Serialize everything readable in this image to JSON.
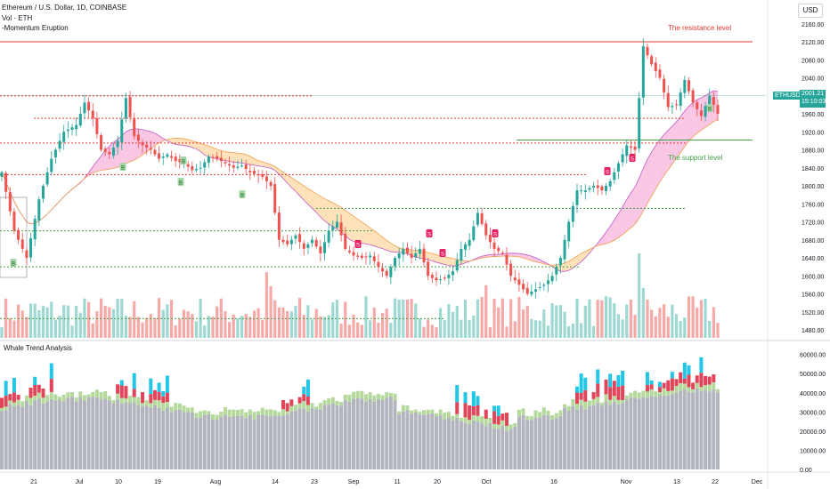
{
  "header": {
    "title": "Ethereum / U.S. Dollar, 1D, COINBASE",
    "volume": "Vol · ETH",
    "indicator": "-Momentum Eruption"
  },
  "price_scale": {
    "currency": "USD",
    "ticks": [
      "2160.00",
      "2120.00",
      "2080.00",
      "2040.00",
      "2000.00",
      "1960.00",
      "1920.00",
      "1880.00",
      "1840.00",
      "1800.00",
      "1760.00",
      "1720.00",
      "1680.00",
      "1640.00",
      "1600.00",
      "1560.00",
      "1520.00",
      "1480.00"
    ],
    "current_symbol": "ETHUSD",
    "current_price": "2001.21",
    "countdown": "15:10:03"
  },
  "panel": {
    "title": "Whale Trend Analysis",
    "ticks": [
      "60000.00",
      "50000.00",
      "40000.00",
      "30000.00",
      "20000.00",
      "10000.00",
      "0.00"
    ]
  },
  "time_axis": {
    "labels": [
      "21",
      "Jul",
      "10",
      "19",
      "Aug",
      "14",
      "23",
      "Sep",
      "11",
      "20",
      "Oct",
      "16",
      "Nov",
      "13",
      "22",
      "Dec"
    ]
  },
  "annotations": {
    "resistance": "The resistance level",
    "support": "The support level"
  },
  "signals": {
    "buy": "B",
    "sell": "S"
  },
  "colors": {
    "up": "#26a69a",
    "down": "#ef5350",
    "resistance": "#e53935",
    "support": "#43a047",
    "ribbon_pink": "#f48fb1",
    "ribbon_orange": "#ffcc80",
    "hist_gray": "#b2b5be",
    "hist_green": "#b5d99c",
    "hist_red": "#e0455a",
    "hist_cyan": "#22c7e8"
  },
  "chart_data": {
    "type": "candlestick",
    "symbol": "ETHUSD",
    "interval": "1D",
    "ylim": [
      1470,
      2180
    ],
    "last_close": 2001.21,
    "resistance_level": 2120,
    "support_level": 1880,
    "dashed_levels": [
      2000,
      1950,
      1900,
      1820,
      1750,
      1700,
      1620,
      1500
    ],
    "close_path": [
      [
        0,
        1830
      ],
      [
        3,
        1700
      ],
      [
        6,
        1640
      ],
      [
        9,
        1770
      ],
      [
        12,
        1860
      ],
      [
        15,
        1920
      ],
      [
        18,
        1935
      ],
      [
        20,
        1985
      ],
      [
        22,
        1950
      ],
      [
        24,
        1880
      ],
      [
        26,
        1870
      ],
      [
        28,
        1900
      ],
      [
        30,
        1995
      ],
      [
        32,
        1910
      ],
      [
        34,
        1890
      ],
      [
        36,
        1880
      ],
      [
        38,
        1860
      ],
      [
        40,
        1870
      ],
      [
        42,
        1855
      ],
      [
        44,
        1850
      ],
      [
        46,
        1835
      ],
      [
        48,
        1840
      ],
      [
        50,
        1865
      ],
      [
        52,
        1860
      ],
      [
        54,
        1850
      ],
      [
        56,
        1840
      ],
      [
        58,
        1845
      ],
      [
        60,
        1830
      ],
      [
        63,
        1820
      ],
      [
        65,
        1800
      ],
      [
        67,
        1680
      ],
      [
        69,
        1670
      ],
      [
        71,
        1690
      ],
      [
        73,
        1660
      ],
      [
        75,
        1680
      ],
      [
        77,
        1650
      ],
      [
        79,
        1700
      ],
      [
        81,
        1720
      ],
      [
        83,
        1660
      ],
      [
        85,
        1645
      ],
      [
        87,
        1640
      ],
      [
        89,
        1645
      ],
      [
        91,
        1620
      ],
      [
        93,
        1600
      ],
      [
        95,
        1640
      ],
      [
        97,
        1660
      ],
      [
        99,
        1640
      ],
      [
        101,
        1660
      ],
      [
        103,
        1600
      ],
      [
        105,
        1590
      ],
      [
        107,
        1595
      ],
      [
        109,
        1610
      ],
      [
        111,
        1660
      ],
      [
        113,
        1680
      ],
      [
        115,
        1740
      ],
      [
        117,
        1690
      ],
      [
        119,
        1660
      ],
      [
        121,
        1650
      ],
      [
        123,
        1600
      ],
      [
        125,
        1580
      ],
      [
        127,
        1560
      ],
      [
        129,
        1570
      ],
      [
        131,
        1580
      ],
      [
        133,
        1600
      ],
      [
        135,
        1640
      ],
      [
        137,
        1720
      ],
      [
        139,
        1790
      ],
      [
        141,
        1790
      ],
      [
        143,
        1800
      ],
      [
        145,
        1790
      ],
      [
        147,
        1810
      ],
      [
        149,
        1850
      ],
      [
        151,
        1890
      ],
      [
        153,
        1880
      ],
      [
        155,
        2110
      ],
      [
        157,
        2070
      ],
      [
        159,
        2040
      ],
      [
        161,
        1975
      ],
      [
        163,
        1980
      ],
      [
        165,
        2035
      ],
      [
        167,
        1985
      ],
      [
        169,
        1955
      ],
      [
        171,
        2000
      ],
      [
        173,
        1960
      ]
    ],
    "volume_scale": [
      1470,
      1600
    ],
    "whale_trend": {
      "ylim": [
        0,
        62000
      ],
      "baseline_range": [
        25000,
        37000
      ],
      "peak": 60000
    }
  }
}
